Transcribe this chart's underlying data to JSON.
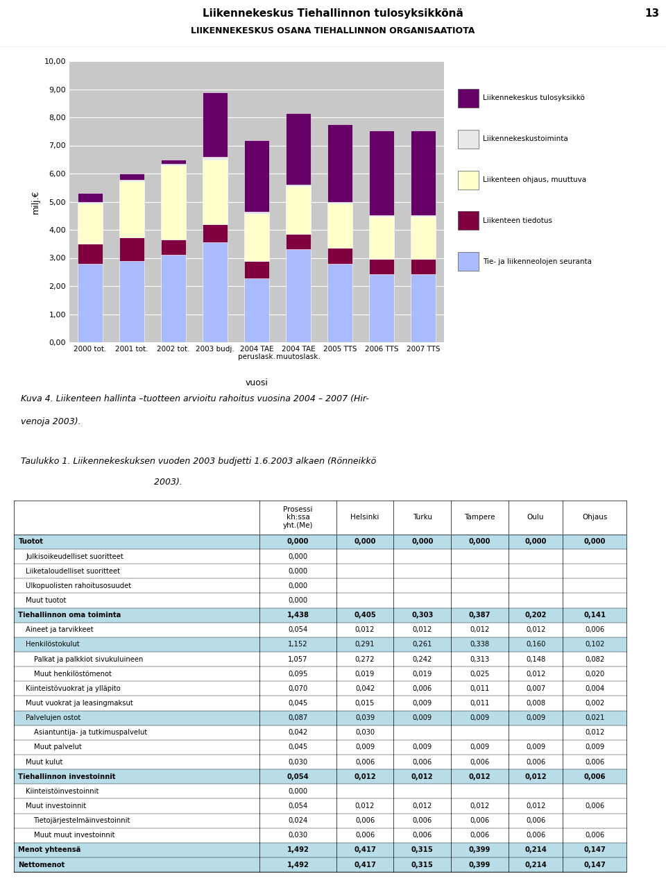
{
  "page_title": "Liikennekeskus Tiehallinnon tulosyksikkönä",
  "page_number": "13",
  "page_subtitle": "LIIKENNEKESKUS OSANA TIEHALLINNON ORGANISAATIOTA",
  "chart_ylabel": "milj.€",
  "chart_xlabel": "vuosi",
  "chart_ylim": [
    0,
    10.0
  ],
  "chart_yticks": [
    0.0,
    1.0,
    2.0,
    3.0,
    4.0,
    5.0,
    6.0,
    7.0,
    8.0,
    9.0,
    10.0
  ],
  "chart_yticklabels": [
    "0,00",
    "1,00",
    "2,00",
    "3,00",
    "4,00",
    "5,00",
    "6,00",
    "7,00",
    "8,00",
    "9,00",
    "10,00"
  ],
  "categories": [
    "2000 tot.",
    "2001 tot.",
    "2002 tot.",
    "2003 budj.",
    "2004 TAE\nperuslask.",
    "2004 TAE\nmuutoslask.",
    "2005 TTS",
    "2006 TTS",
    "2007 TTS"
  ],
  "series_labels": [
    "Tie- ja liikenneolojen seuranta",
    "Liikenteen tiedotus",
    "Liikenteen ohjaus, muuttuva",
    "Liikennekeskustoiminta",
    "Liikennekeskus tulosyksikkö"
  ],
  "series_colors": [
    "#aabbff",
    "#800040",
    "#ffffcc",
    "#e8e8e8",
    "#660066"
  ],
  "bar_data": [
    [
      2.8,
      0.7,
      1.45,
      0.05,
      0.3
    ],
    [
      2.88,
      0.85,
      2.0,
      0.05,
      0.22
    ],
    [
      3.1,
      0.55,
      2.65,
      0.05,
      0.15
    ],
    [
      3.55,
      0.65,
      2.3,
      0.1,
      2.28
    ],
    [
      2.28,
      0.6,
      1.7,
      0.05,
      2.55
    ],
    [
      3.3,
      0.55,
      1.7,
      0.05,
      2.55
    ],
    [
      2.8,
      0.55,
      1.6,
      0.05,
      2.75
    ],
    [
      2.42,
      0.55,
      1.5,
      0.05,
      3.0
    ],
    [
      2.42,
      0.55,
      1.5,
      0.05,
      3.0
    ]
  ],
  "legend_labels": [
    "Liikennekeskus tulosyksikkö",
    "Liikennekeskustoiminta",
    "Liikenteen ohjaus, muuttuva",
    "Liikenteen tiedotus",
    "Tie- ja liikenneolojen seuranta"
  ],
  "legend_colors": [
    "#660066",
    "#e8e8e8",
    "#ffffcc",
    "#800040",
    "#aabbff"
  ],
  "caption1": "Kuva 4. Liikenteen hallinta –tuotteen arvioitu rahoitus vuosina 2004 – 2007 (Hirvenoja 2003).",
  "caption2": "Taulukko 1. Liikennekeskuksen vuoden 2003 budjetti 1.6.2003 alkaen (Rönneikkö 2003).",
  "table_rows": [
    {
      "label": "Tuotot",
      "indent": 0,
      "bold": true,
      "bg": "#b8dce8",
      "values": [
        "0,000",
        "0,000",
        "0,000",
        "0,000",
        "0,000",
        "0,000"
      ]
    },
    {
      "label": "Julkisoikeudelliset suoritteet",
      "indent": 1,
      "bold": false,
      "bg": "#ffffff",
      "values": [
        "0,000",
        "",
        "",
        "",
        "",
        ""
      ]
    },
    {
      "label": "Liiketaloudelliset suoritteet",
      "indent": 1,
      "bold": false,
      "bg": "#ffffff",
      "values": [
        "0,000",
        "",
        "",
        "",
        "",
        ""
      ]
    },
    {
      "label": "Ulkopuolisten rahoitusosuudet",
      "indent": 1,
      "bold": false,
      "bg": "#ffffff",
      "values": [
        "0,000",
        "",
        "",
        "",
        "",
        ""
      ]
    },
    {
      "label": "Muut tuotot",
      "indent": 1,
      "bold": false,
      "bg": "#ffffff",
      "values": [
        "0,000",
        "",
        "",
        "",
        "",
        ""
      ]
    },
    {
      "label": "Tiehallinnon oma toiminta",
      "indent": 0,
      "bold": true,
      "bg": "#b8dce8",
      "values": [
        "1,438",
        "0,405",
        "0,303",
        "0,387",
        "0,202",
        "0,141"
      ]
    },
    {
      "label": "Aineet ja tarvikkeet",
      "indent": 1,
      "bold": false,
      "bg": "#ffffff",
      "values": [
        "0,054",
        "0,012",
        "0,012",
        "0,012",
        "0,012",
        "0,006"
      ]
    },
    {
      "label": "Henkilöstokulut",
      "indent": 1,
      "bold": false,
      "bg": "#b8dce8",
      "values": [
        "1,152",
        "0,291",
        "0,261",
        "0,338",
        "0,160",
        "0,102"
      ]
    },
    {
      "label": "Palkat ja palkkiot sivukuluineen",
      "indent": 2,
      "bold": false,
      "bg": "#ffffff",
      "values": [
        "1,057",
        "0,272",
        "0,242",
        "0,313",
        "0,148",
        "0,082"
      ]
    },
    {
      "label": "Muut henkilöstömenot",
      "indent": 2,
      "bold": false,
      "bg": "#ffffff",
      "values": [
        "0,095",
        "0,019",
        "0,019",
        "0,025",
        "0,012",
        "0,020"
      ]
    },
    {
      "label": "Kiinteistövuokrat ja ylläpito",
      "indent": 1,
      "bold": false,
      "bg": "#ffffff",
      "values": [
        "0,070",
        "0,042",
        "0,006",
        "0,011",
        "0,007",
        "0,004"
      ]
    },
    {
      "label": "Muut vuokrat ja leasingmaksut",
      "indent": 1,
      "bold": false,
      "bg": "#ffffff",
      "values": [
        "0,045",
        "0,015",
        "0,009",
        "0,011",
        "0,008",
        "0,002"
      ]
    },
    {
      "label": "Palvelujen ostot",
      "indent": 1,
      "bold": false,
      "bg": "#b8dce8",
      "values": [
        "0,087",
        "0,039",
        "0,009",
        "0,009",
        "0,009",
        "0,021"
      ]
    },
    {
      "label": "Asiantuntija- ja tutkimuspalvelut",
      "indent": 2,
      "bold": false,
      "bg": "#ffffff",
      "values": [
        "0,042",
        "0,030",
        "",
        "",
        "",
        "0,012"
      ]
    },
    {
      "label": "Muut palvelut",
      "indent": 2,
      "bold": false,
      "bg": "#ffffff",
      "values": [
        "0,045",
        "0,009",
        "0,009",
        "0,009",
        "0,009",
        "0,009"
      ]
    },
    {
      "label": "Muut kulut",
      "indent": 1,
      "bold": false,
      "bg": "#ffffff",
      "values": [
        "0,030",
        "0,006",
        "0,006",
        "0,006",
        "0,006",
        "0,006"
      ]
    },
    {
      "label": "Tiehallinnon investoinnit",
      "indent": 0,
      "bold": true,
      "bg": "#b8dce8",
      "values": [
        "0,054",
        "0,012",
        "0,012",
        "0,012",
        "0,012",
        "0,006"
      ]
    },
    {
      "label": "Kiinteistöinvestoinnit",
      "indent": 1,
      "bold": false,
      "bg": "#ffffff",
      "values": [
        "0,000",
        "",
        "",
        "",
        "",
        ""
      ]
    },
    {
      "label": "Muut investoinnit",
      "indent": 1,
      "bold": false,
      "bg": "#ffffff",
      "values": [
        "0,054",
        "0,012",
        "0,012",
        "0,012",
        "0,012",
        "0,006"
      ]
    },
    {
      "label": "Tietojärjestelmäinvestoinnit",
      "indent": 2,
      "bold": false,
      "bg": "#ffffff",
      "values": [
        "0,024",
        "0,006",
        "0,006",
        "0,006",
        "0,006",
        ""
      ]
    },
    {
      "label": "Muut muut investoinnit",
      "indent": 2,
      "bold": false,
      "bg": "#ffffff",
      "values": [
        "0,030",
        "0,006",
        "0,006",
        "0,006",
        "0,006",
        "0,006"
      ]
    },
    {
      "label": "Menot yhteensä",
      "indent": 0,
      "bold": true,
      "bg": "#b8dce8",
      "values": [
        "1,492",
        "0,417",
        "0,315",
        "0,399",
        "0,214",
        "0,147"
      ]
    },
    {
      "label": "Nettomenot",
      "indent": 0,
      "bold": true,
      "bg": "#b8dce8",
      "values": [
        "1,492",
        "0,417",
        "0,315",
        "0,399",
        "0,214",
        "0,147"
      ]
    }
  ],
  "background_color": "#c8c8c8"
}
